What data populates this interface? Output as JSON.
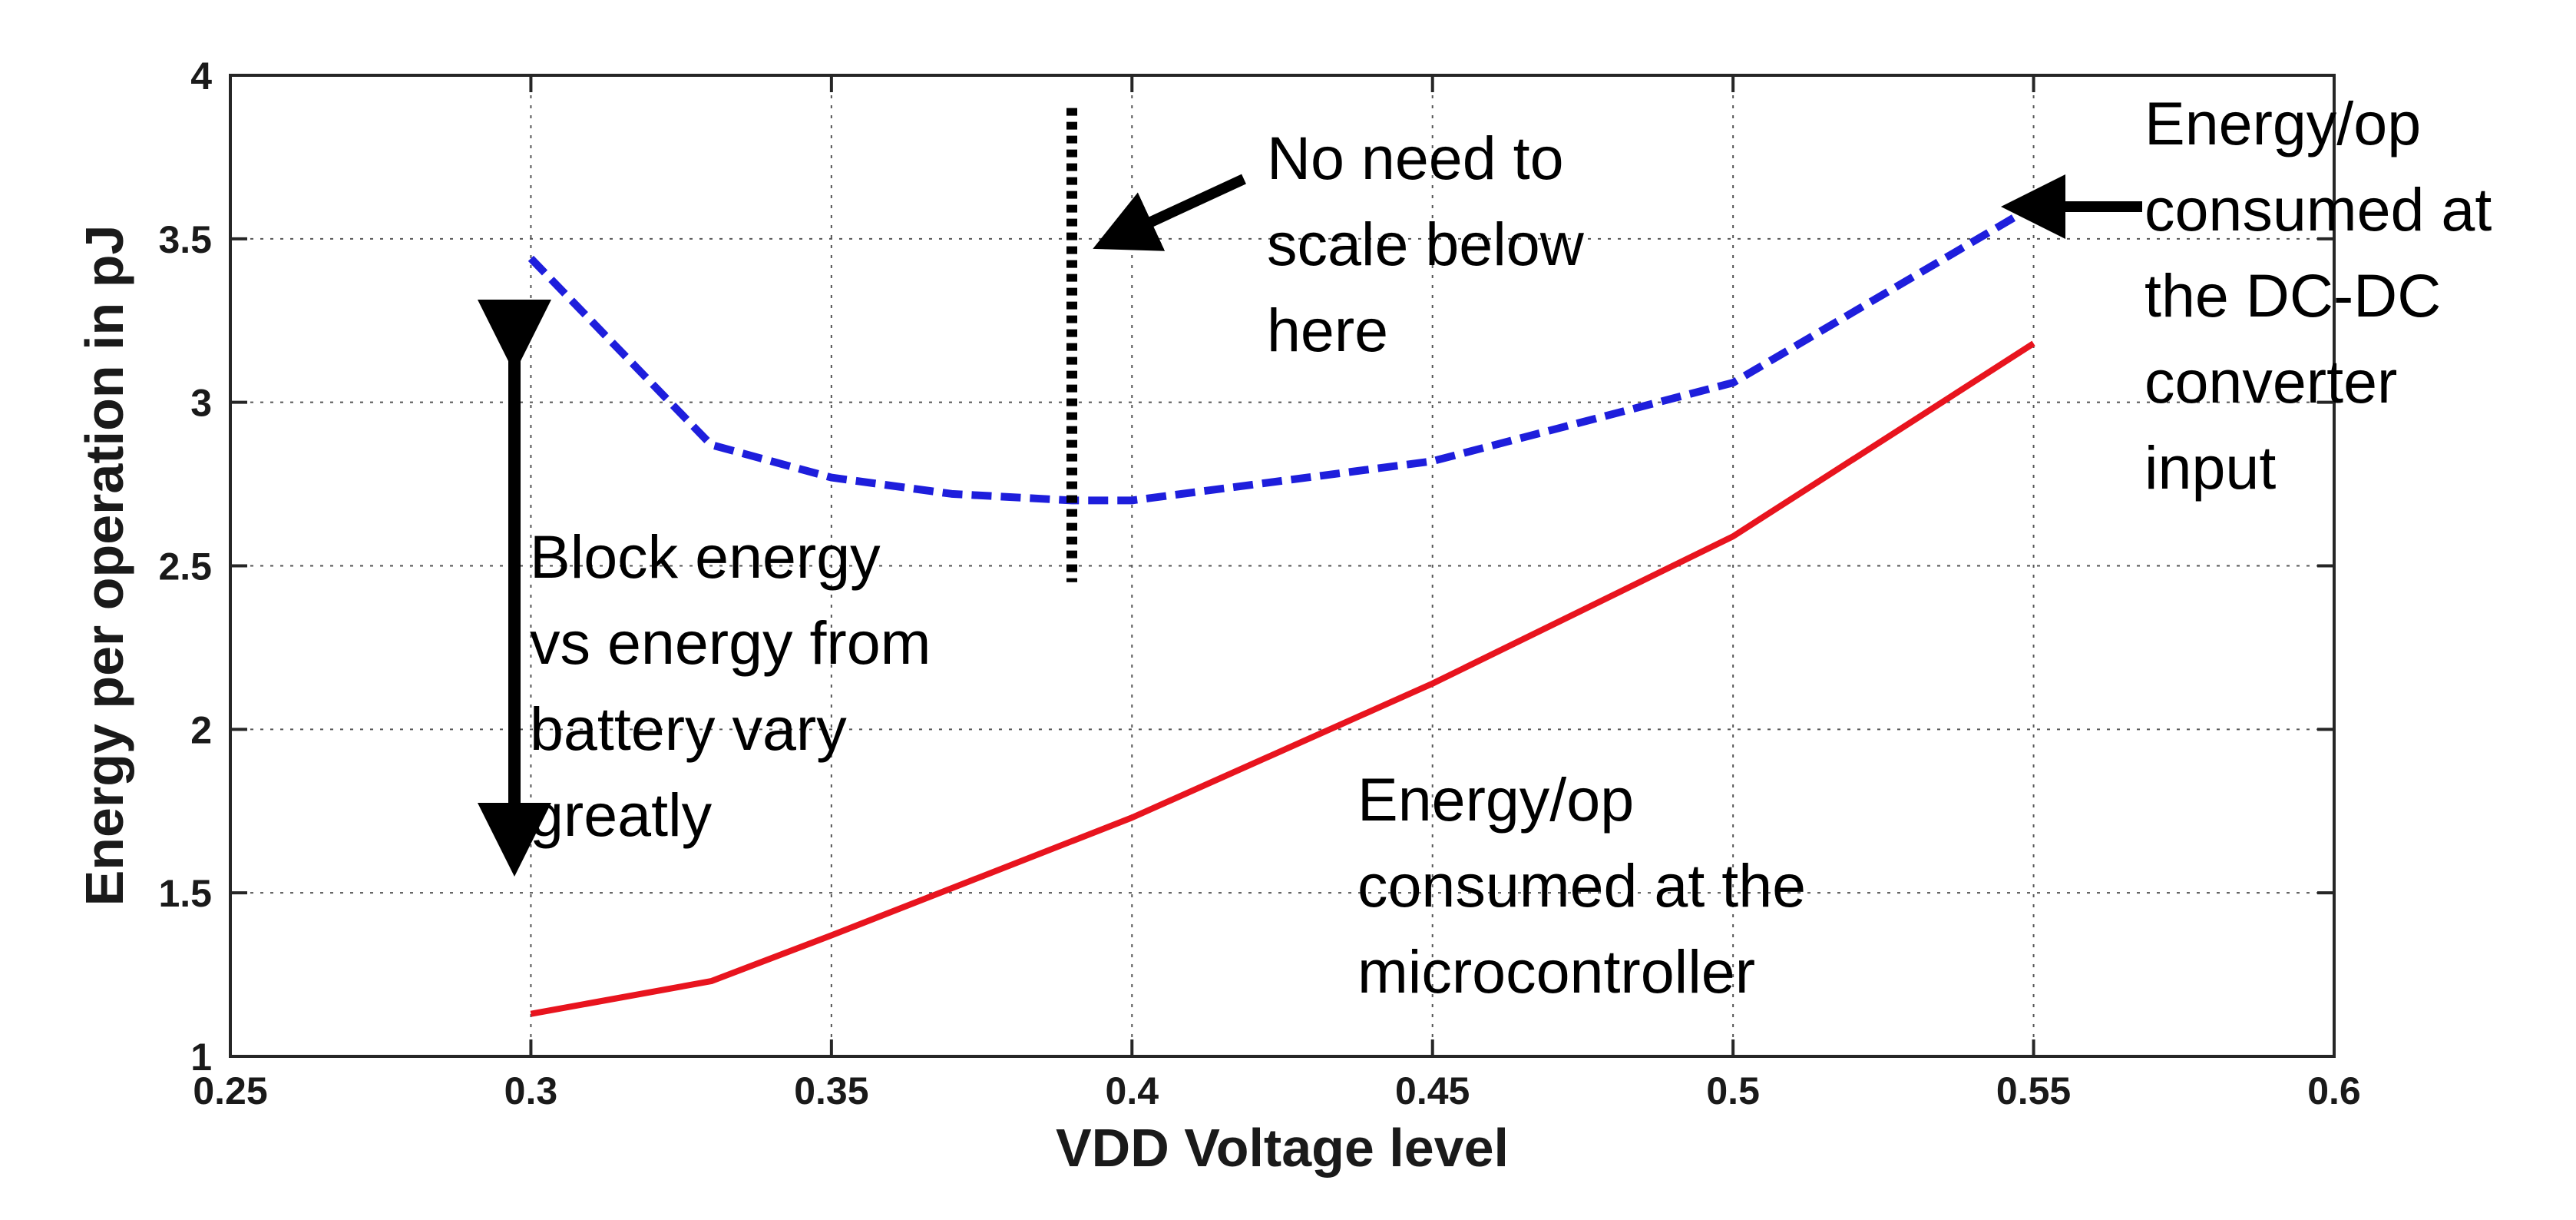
{
  "chart_data": {
    "type": "line",
    "title": "",
    "xlabel": "VDD Voltage level",
    "ylabel": "Energy per operation in pJ",
    "xlim": [
      0.25,
      0.6
    ],
    "ylim": [
      1,
      4
    ],
    "grid": true,
    "x_ticks": [
      "0.25",
      "0.3",
      "0.35",
      "0.4",
      "0.45",
      "0.5",
      "0.55",
      "0.6"
    ],
    "y_ticks": [
      "1",
      "1.5",
      "2",
      "2.5",
      "3",
      "3.5",
      "4"
    ],
    "series": [
      {
        "name": "Energy/op consumed at the DC-DC converter input",
        "style": "dashed",
        "color": "#1e1edc",
        "x": [
          0.3,
          0.33,
          0.35,
          0.37,
          0.39,
          0.4,
          0.45,
          0.5,
          0.55
        ],
        "values": [
          3.44,
          2.87,
          2.77,
          2.72,
          2.7,
          2.7,
          2.82,
          3.06,
          3.6
        ]
      },
      {
        "name": "Energy/op consumed at the microcontroller",
        "style": "solid",
        "color": "#e8141e",
        "x": [
          0.3,
          0.33,
          0.35,
          0.4,
          0.45,
          0.5,
          0.55
        ],
        "values": [
          1.13,
          1.23,
          1.37,
          1.73,
          2.14,
          2.59,
          3.18
        ]
      }
    ],
    "markers": [
      {
        "type": "vertical-dotted-line",
        "x": 0.39,
        "y_from": 2.45,
        "y_to": 3.9,
        "color": "#000000"
      }
    ],
    "annotations": [
      {
        "id": "no-need",
        "lines": [
          "No need to",
          "scale below",
          "here"
        ]
      },
      {
        "id": "dcdc",
        "lines": [
          "Energy/op",
          "consumed at",
          "the DC-DC",
          "converter",
          "input"
        ]
      },
      {
        "id": "block",
        "lines": [
          "Block energy",
          "vs energy from",
          "battery vary",
          "greatly"
        ]
      },
      {
        "id": "micro",
        "lines": [
          "Energy/op",
          "consumed at the",
          "microcontroller"
        ]
      }
    ]
  }
}
